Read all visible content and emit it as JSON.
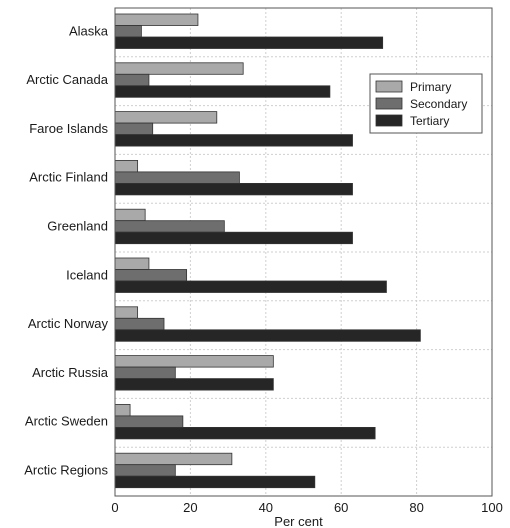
{
  "chart_data": {
    "type": "bar",
    "orientation": "horizontal",
    "categories": [
      "Alaska",
      "Arctic Canada",
      "Faroe Islands",
      "Arctic Finland",
      "Greenland",
      "Iceland",
      "Arctic Norway",
      "Arctic Russia",
      "Arctic Sweden",
      "Arctic Regions"
    ],
    "series": [
      {
        "name": "Primary",
        "color": "#a9a9a9",
        "values": [
          22,
          34,
          27,
          6,
          8,
          9,
          6,
          42,
          4,
          31
        ]
      },
      {
        "name": "Secondary",
        "color": "#6e6e6e",
        "values": [
          7,
          9,
          10,
          33,
          29,
          19,
          13,
          16,
          18,
          16
        ]
      },
      {
        "name": "Tertiary",
        "color": "#262626",
        "values": [
          71,
          57,
          63,
          63,
          63,
          72,
          81,
          42,
          69,
          53
        ]
      }
    ],
    "xlabel": "Per cent",
    "xlim": [
      0,
      100
    ],
    "xticks": [
      "0",
      "20",
      "40",
      "60",
      "80",
      "100"
    ],
    "grid": true,
    "legend_position": "top-right"
  }
}
